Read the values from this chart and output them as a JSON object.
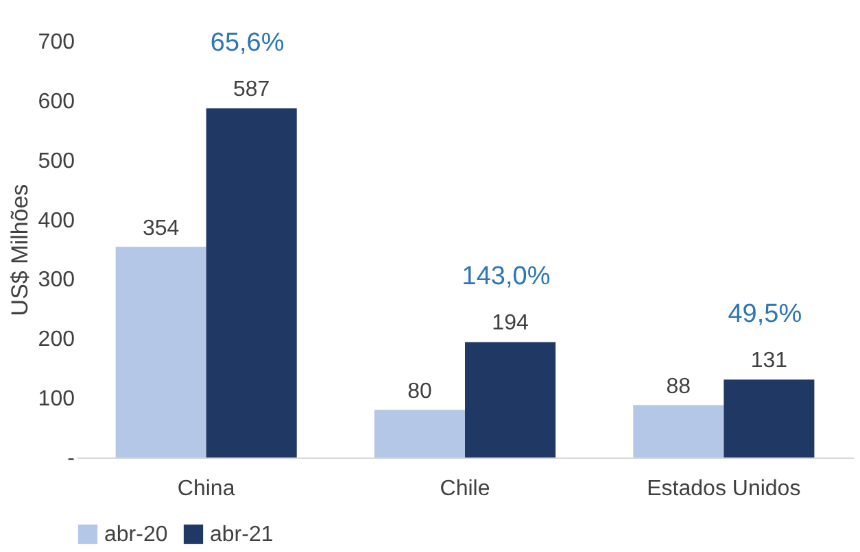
{
  "chart_data": {
    "type": "bar",
    "ylabel": "US$ Milhões",
    "categories": [
      "China",
      "Chile",
      "Estados Unidos"
    ],
    "series": [
      {
        "name": "abr-20",
        "color": "#b4c7e7",
        "values": [
          354,
          80,
          88
        ]
      },
      {
        "name": "abr-21",
        "color": "#203864",
        "values": [
          587,
          194,
          131
        ]
      }
    ],
    "ylim": [
      0,
      700
    ],
    "yticks": [
      {
        "value": 0,
        "label": "-"
      },
      100,
      200,
      300,
      400,
      500,
      600,
      700
    ],
    "data_labels": true,
    "grid": false,
    "legend": "bottom",
    "annotations": [
      "65,6%",
      "143,0%",
      "49,5%"
    ]
  }
}
